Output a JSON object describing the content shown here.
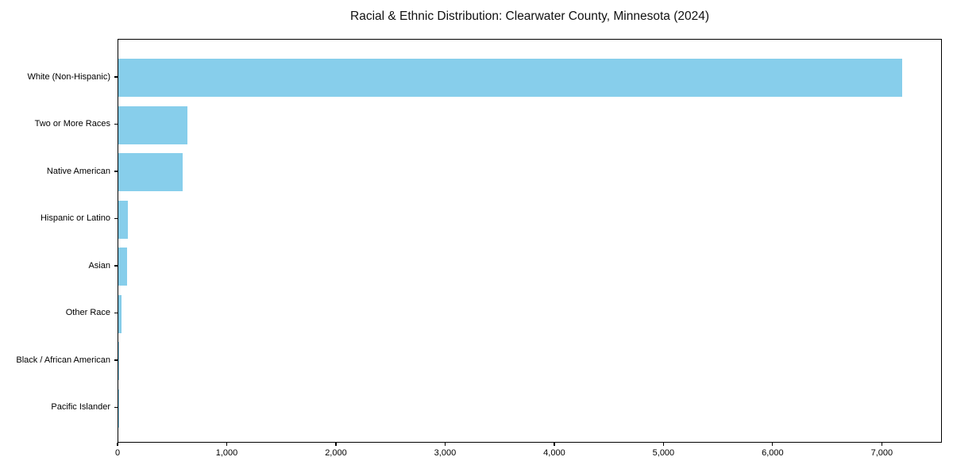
{
  "chart_data": {
    "type": "bar",
    "orientation": "horizontal",
    "title": "Racial & Ethnic Distribution: Clearwater County, Minnesota (2024)",
    "categories": [
      "White (Non-Hispanic)",
      "Two or More Races",
      "Native American",
      "Hispanic or Latino",
      "Asian",
      "Other Race",
      "Black / African American",
      "Pacific Islander"
    ],
    "values": [
      7180,
      630,
      590,
      90,
      82,
      30,
      7,
      1
    ],
    "xlabel": "",
    "ylabel": "",
    "xlim": [
      0,
      7550
    ],
    "xticks": [
      0,
      1000,
      2000,
      3000,
      4000,
      5000,
      6000,
      7000
    ],
    "xtick_labels": [
      "0",
      "1,000",
      "2,000",
      "3,000",
      "4,000",
      "5,000",
      "6,000",
      "7,000"
    ],
    "grid": false,
    "legend": null,
    "bar_color": "#87CEEB",
    "axis_color": "#000000",
    "background_color": "#FFFFFF"
  }
}
